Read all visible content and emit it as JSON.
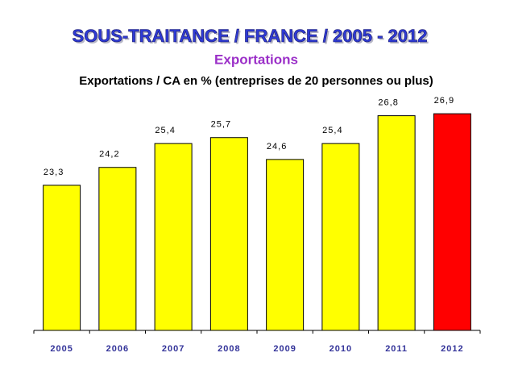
{
  "chart_data": {
    "type": "bar",
    "title": "SOUS-TRAITANCE / FRANCE / 2005 - 2012",
    "subtitle": "Exportations",
    "y_label": "Exportations / CA en % (entreprises de 20 personnes ou plus)",
    "categories": [
      "2005",
      "2006",
      "2007",
      "2008",
      "2009",
      "2010",
      "2011",
      "2012"
    ],
    "values": [
      23.3,
      24.2,
      25.4,
      25.7,
      24.6,
      25.4,
      26.8,
      26.9
    ],
    "value_labels": [
      "23,3",
      "24,2",
      "25,4",
      "25,7",
      "24,6",
      "25,4",
      "26,8",
      "26,9"
    ],
    "colors": [
      "#ffff00",
      "#ffff00",
      "#ffff00",
      "#ffff00",
      "#ffff00",
      "#ffff00",
      "#ffff00",
      "#ff0000"
    ],
    "ylim": [
      16,
      28
    ]
  }
}
